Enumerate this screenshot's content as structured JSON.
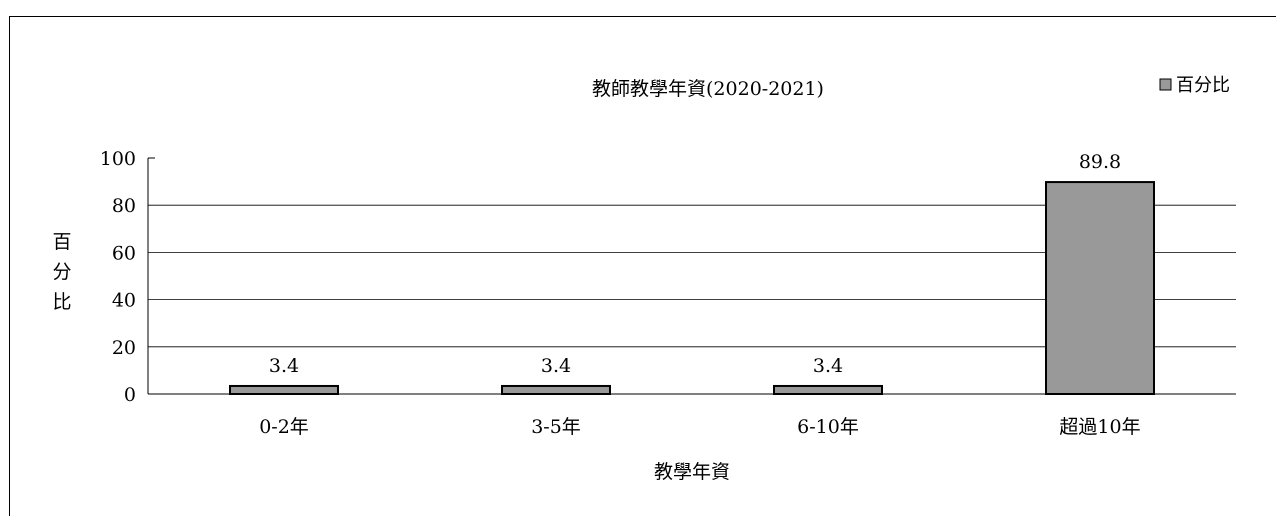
{
  "chart_data": {
    "type": "bar",
    "title": "教師教學年資(2020-2021)",
    "xlabel": "教學年資",
    "ylabel": "百分比",
    "categories": [
      "0-2年",
      "3-5年",
      "6-10年",
      "超過10年"
    ],
    "series": [
      {
        "name": "百分比",
        "values": [
          3.4,
          3.4,
          3.4,
          89.8
        ],
        "color": "#999999"
      }
    ],
    "data_labels": [
      "3.4",
      "3.4",
      "3.4",
      "89.8"
    ],
    "y_ticks": [
      "0",
      "20",
      "40",
      "60",
      "80",
      "100"
    ],
    "ylim": [
      0,
      100
    ],
    "grid": true,
    "legend": "top-right"
  }
}
